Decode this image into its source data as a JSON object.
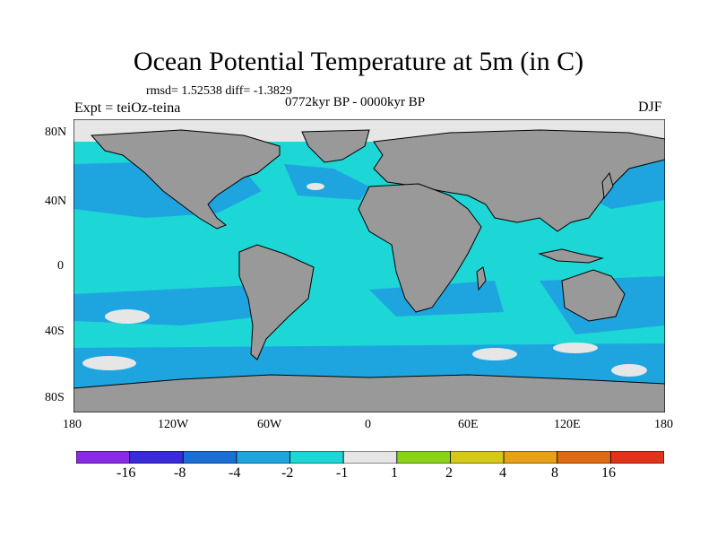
{
  "title": "Ocean Potential Temperature at 5m (in C)",
  "stats": "rmsd= 1.52538 diff= -1.3829",
  "period": "0772kyr BP - 0000kyr BP",
  "experiment": "Expt = teiOz-teina",
  "season": "DJF",
  "lat_labels": [
    "80N",
    "40N",
    "0",
    "40S",
    "80S"
  ],
  "lon_labels": [
    "180",
    "120W",
    "60W",
    "0",
    "60E",
    "120E",
    "180"
  ],
  "colorbar": {
    "colors": [
      "#8a2be2",
      "#3a2bd8",
      "#1a6fd6",
      "#1ea5e0",
      "#1dd6d6",
      "#e6e6e6",
      "#8ad21a",
      "#d6c81a",
      "#e6a01a",
      "#e06a14",
      "#e0331a"
    ],
    "labels": [
      "-16",
      "-8",
      "-4",
      "-2",
      "-1",
      "1",
      "2",
      "4",
      "8",
      "16"
    ]
  },
  "map_colors": {
    "land": "#999999",
    "ice": "#e6e6e6",
    "ocean_main": "#1dd6d6",
    "ocean_cool": "#1ea5e0"
  }
}
